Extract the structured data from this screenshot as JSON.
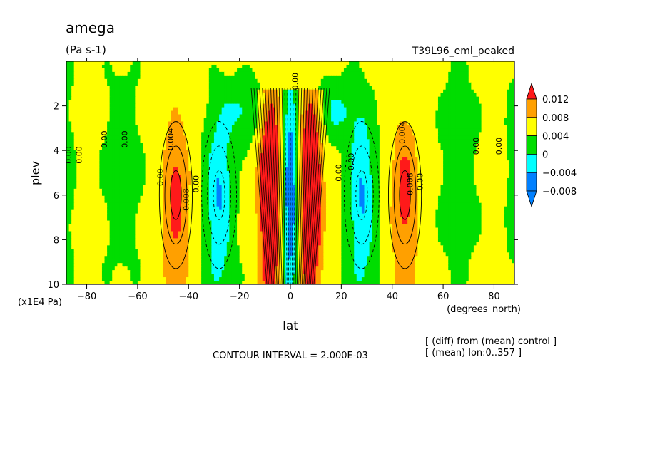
{
  "header": {
    "title": "amega",
    "units": "(Pa s-1)",
    "run_name": "T39L96_eml_peaked"
  },
  "footer": {
    "contour_interval": "CONTOUR INTERVAL = 2.000E-03",
    "note_diff": "[ (diff) from (mean) control ]",
    "note_mean": "[ (mean) lon:0..357 ]"
  },
  "chart_data": {
    "type": "heatmap",
    "title": "amega",
    "subtitle": "(Pa s-1)",
    "xlabel": "lat",
    "x_units": "(degrees_north)",
    "ylabel": "plev",
    "y_units": "(x1E4 Pa)",
    "xlim": [
      -88,
      88
    ],
    "ylim": [
      0,
      10
    ],
    "y_inverted": true,
    "x_ticks": [
      -80,
      -60,
      -40,
      -20,
      0,
      20,
      40,
      60,
      80
    ],
    "y_ticks": [
      2,
      4,
      6,
      8,
      10
    ],
    "contour_interval": 0.002,
    "colorbar": {
      "levels": [
        0.012,
        0.008,
        0.004,
        0,
        -0.004,
        -0.008
      ],
      "labels": [
        "0.012",
        "0.008",
        "0.004",
        "0",
        "−0.004",
        "−0.008"
      ],
      "colors": [
        "#ff1a1a",
        "#ffa000",
        "#ffff00",
        "#00dd00",
        "#00ffff",
        "#0080ff",
        "#0000ff"
      ]
    },
    "features": [
      {
        "lat": -45,
        "plev": [
          2.5,
          9.5
        ],
        "sign": "positive",
        "peak": 0.008
      },
      {
        "lat": 45,
        "plev": [
          2.5,
          9.5
        ],
        "sign": "positive",
        "peak": 0.008
      },
      {
        "lat": -28,
        "plev": [
          2.5,
          9.5
        ],
        "sign": "negative",
        "peak": -0.008
      },
      {
        "lat": 28,
        "plev": [
          2.5,
          9.5
        ],
        "sign": "negative",
        "peak": -0.008
      },
      {
        "lat": -8,
        "plev": [
          1,
          10
        ],
        "sign": "positive",
        "peak": 0.012
      },
      {
        "lat": 8,
        "plev": [
          1,
          10
        ],
        "sign": "positive",
        "peak": 0.012
      },
      {
        "lat": 0,
        "plev": [
          1,
          10
        ],
        "sign": "negative",
        "peak": -0.008
      }
    ],
    "contour_labels": [
      {
        "text": "0.00",
        "lat": -86,
        "plev": 4.2
      },
      {
        "text": "0.00",
        "lat": -82,
        "plev": 4.2
      },
      {
        "text": "0.00",
        "lat": -72,
        "plev": 3.5
      },
      {
        "text": "0.00",
        "lat": -64,
        "plev": 3.5
      },
      {
        "text": "0.004",
        "lat": -46,
        "plev": 3.5
      },
      {
        "text": "0.00",
        "lat": -50,
        "plev": 5.2
      },
      {
        "text": "0.008",
        "lat": -40,
        "plev": 6.2
      },
      {
        "text": "0.00",
        "lat": -36,
        "plev": 5.5
      },
      {
        "text": "0.00",
        "lat": 3,
        "plev": 0.9
      },
      {
        "text": "0.004",
        "lat": 45,
        "plev": 3.2
      },
      {
        "text": "0.008",
        "lat": 48,
        "plev": 5.5
      },
      {
        "text": "0.00",
        "lat": 52,
        "plev": 5.4
      },
      {
        "text": "0.00",
        "lat": 74,
        "plev": 3.8
      },
      {
        "text": "0.00",
        "lat": 83,
        "plev": 3.8
      },
      {
        "text": "0.00",
        "lat": 20,
        "plev": 5.0
      },
      {
        "text": "0.00",
        "lat": 25,
        "plev": 4.5
      }
    ]
  }
}
